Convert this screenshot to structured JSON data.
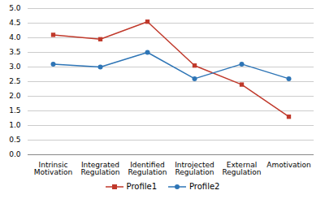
{
  "chart_data": {
    "type": "line",
    "categories": [
      "Intrinsic\nMotivation",
      "Integrated\nRegulation",
      "Identified\nRegulation",
      "Introjected\nRegulation",
      "External\nRegulation",
      "Amotivation"
    ],
    "series": [
      {
        "name": "Profile1",
        "color": "#c0392b",
        "marker": "square",
        "values": [
          4.1,
          3.95,
          4.55,
          3.05,
          2.4,
          1.3
        ]
      },
      {
        "name": "Profile2",
        "color": "#2e75b6",
        "marker": "circle",
        "values": [
          3.1,
          3.0,
          3.5,
          2.6,
          3.1,
          2.6
        ]
      }
    ],
    "ylim": [
      0,
      5
    ],
    "yticks": [
      0,
      0.5,
      1.0,
      1.5,
      2.0,
      2.5,
      3.0,
      3.5,
      4.0,
      4.5,
      5.0
    ],
    "grid": true,
    "legend": "bottom"
  }
}
